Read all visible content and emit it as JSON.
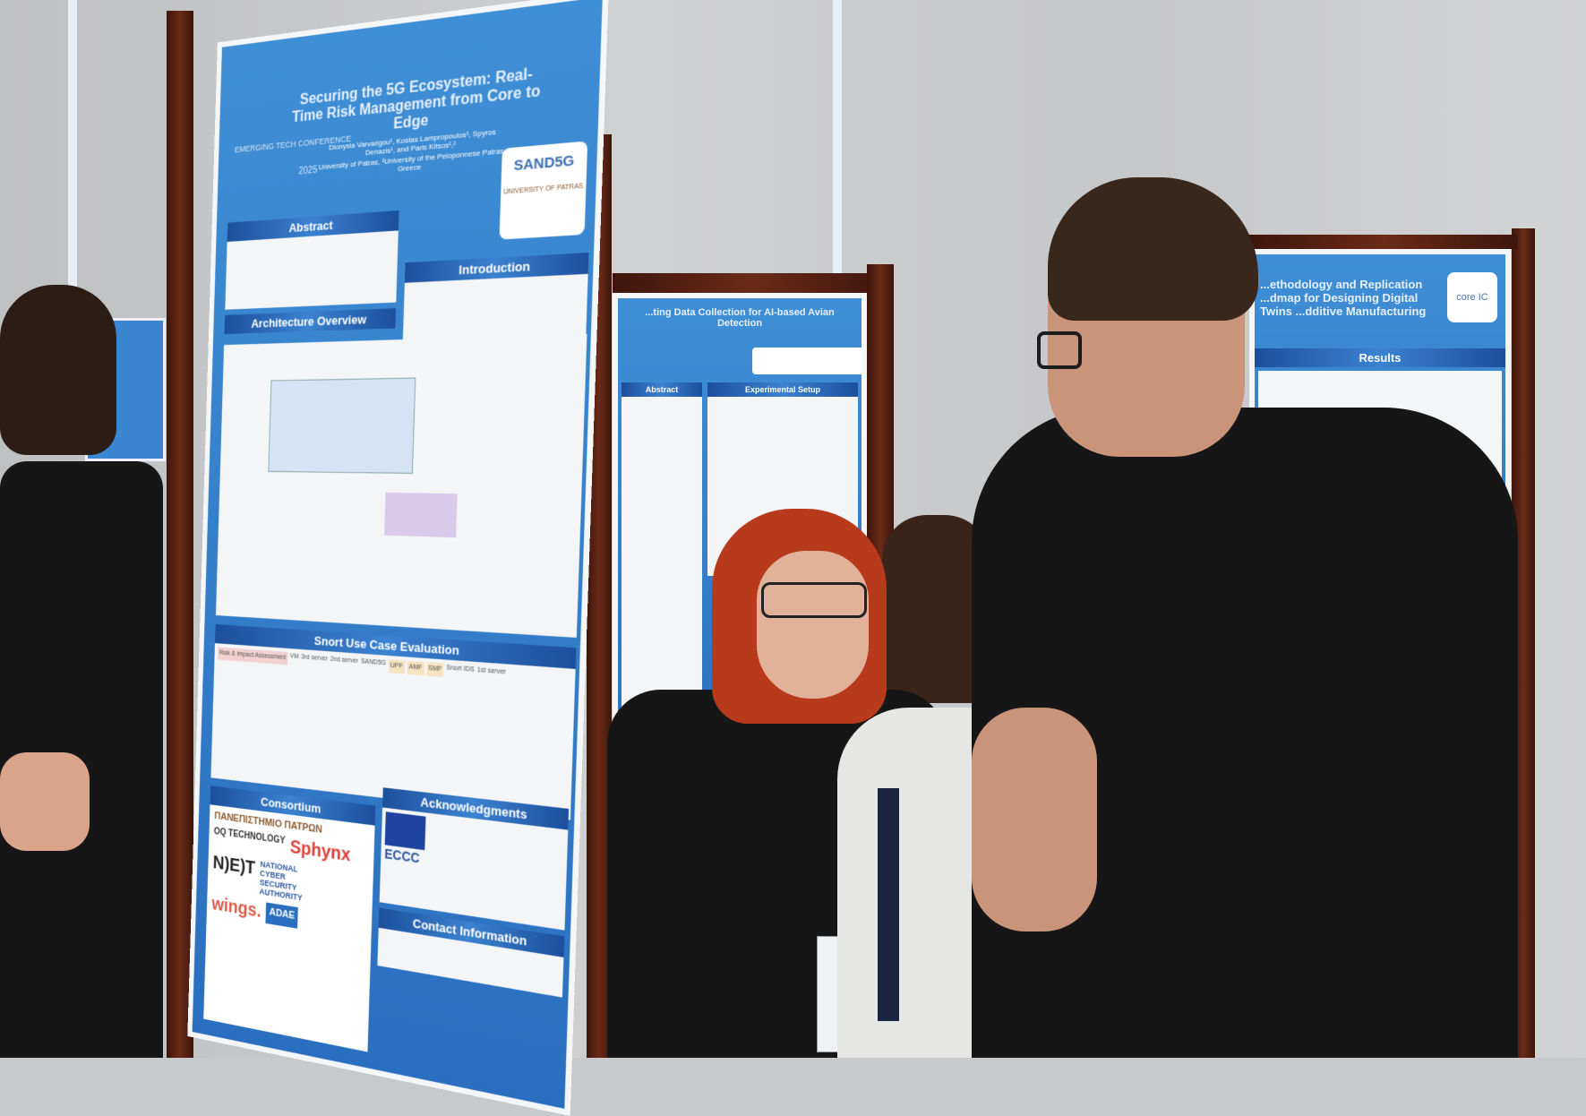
{
  "left_poster": {
    "title": "Securing the 5G Ecosystem: Real-Time Risk Management from Core to Edge",
    "authors": "Dionysia Varvarigou¹, Kostas Lampropoulos¹, Spyros Denazis¹, and Paris Kitsos¹,²",
    "affiliation": "University of Patras, ²University of the Peloponnese Patras, Greece",
    "conference": "EMERGING TECH CONFERENCE",
    "year": "2025",
    "project_logo": "SAND5G",
    "university_logo": "UNIVERSITY OF PATRAS",
    "sections": {
      "abstract": "Abstract",
      "introduction": "Introduction",
      "architecture": "Architecture Overview",
      "snort": "Snort Use Case Evaluation",
      "acknowledgments": "Acknowledgments",
      "consortium": "Consortium",
      "contact": "Contact Information"
    },
    "diagram_labels": [
      "Risk & Impact Assessment",
      "VM",
      "3rd server",
      "2nd server",
      "SAND5G",
      "UPF",
      "AMF",
      "SMF",
      "Snort IDS",
      "1st server"
    ],
    "consortium_logos": [
      "ΠΑΝΕΠΙΣΤΗΜΙΟ ΠΑΤΡΩΝ",
      "OQ TECHNOLOGY",
      "Sphynx",
      "N)E)T",
      "NATIONAL CYBER SECURITY AUTHORITY",
      "wings.",
      "ADAE"
    ],
    "ack_logo": "ECCC"
  },
  "middle_poster": {
    "title": "...ting Data Collection for AI-based Avian Detection",
    "sections": {
      "abstract": "Abstract",
      "setup": "Experimental Setup"
    }
  },
  "right_poster": {
    "title": "...ethodology and Replication ...dmap for Designing Digital Twins ...dditive Manufacturing",
    "logo": "core IC",
    "sections": {
      "results": "Results"
    }
  },
  "colors": {
    "poster_blue": "#2f7cc9",
    "wall": "#c8c9cb",
    "frame": "#5a2314",
    "hair_red": "#b83a1c"
  }
}
